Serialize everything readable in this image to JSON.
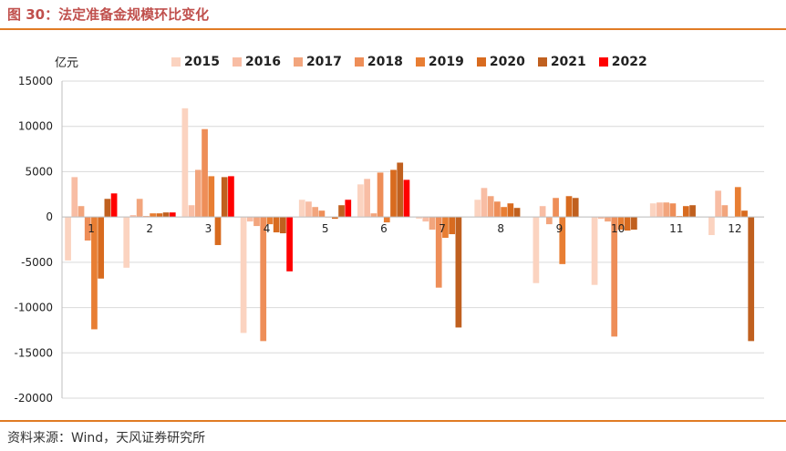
{
  "title": "图 30：法定准备金规模环比变化",
  "source": "资料来源：Wind，天风证券研究所",
  "colors": {
    "2015": "#fbd3c0",
    "2016": "#f8bda4",
    "2017": "#f2a57d",
    "2018": "#ee8e58",
    "2019": "#e87e33",
    "2020": "#d86b1f",
    "2021": "#c0601f",
    "2022": "#ff0000",
    "accent": "#e07b24"
  },
  "chart_data": {
    "type": "bar",
    "unit_label": "亿元",
    "categories": [
      "1",
      "2",
      "3",
      "4",
      "5",
      "6",
      "7",
      "8",
      "9",
      "10",
      "11",
      "12"
    ],
    "ylim": [
      -20000,
      15000
    ],
    "yticks": [
      15000,
      10000,
      5000,
      0,
      -5000,
      -10000,
      -15000,
      -20000
    ],
    "grid": true,
    "legend_position": "top",
    "series": [
      {
        "name": "2015",
        "values": [
          -4800,
          -5600,
          12000,
          -12800,
          1900,
          3600,
          -200,
          1900,
          -7300,
          -7500,
          1500,
          -2000
        ]
      },
      {
        "name": "2016",
        "values": [
          4400,
          200,
          1300,
          -500,
          1700,
          4200,
          -500,
          3200,
          1200,
          -200,
          1600,
          2900
        ]
      },
      {
        "name": "2017",
        "values": [
          1200,
          2000,
          5200,
          -1000,
          1100,
          400,
          -1400,
          2300,
          -800,
          -500,
          1600,
          1300
        ]
      },
      {
        "name": "2018",
        "values": [
          -2600,
          100,
          9700,
          -13700,
          700,
          4900,
          -7800,
          1700,
          2100,
          -13200,
          1500,
          0
        ]
      },
      {
        "name": "2019",
        "values": [
          -12400,
          400,
          4500,
          -800,
          0,
          -600,
          -2300,
          1100,
          -5200,
          -1400,
          100,
          3300
        ]
      },
      {
        "name": "2020",
        "values": [
          -6800,
          400,
          -3100,
          -1700,
          -200,
          5200,
          -1900,
          1500,
          2300,
          -1500,
          1200,
          700
        ]
      },
      {
        "name": "2021",
        "values": [
          2000,
          500,
          4400,
          -1800,
          1300,
          6000,
          -12200,
          1000,
          2100,
          -1400,
          1300,
          -13700
        ]
      },
      {
        "name": "2022",
        "values": [
          2600,
          500,
          4500,
          -6000,
          1900,
          4100,
          null,
          null,
          null,
          null,
          null,
          null
        ]
      }
    ]
  }
}
